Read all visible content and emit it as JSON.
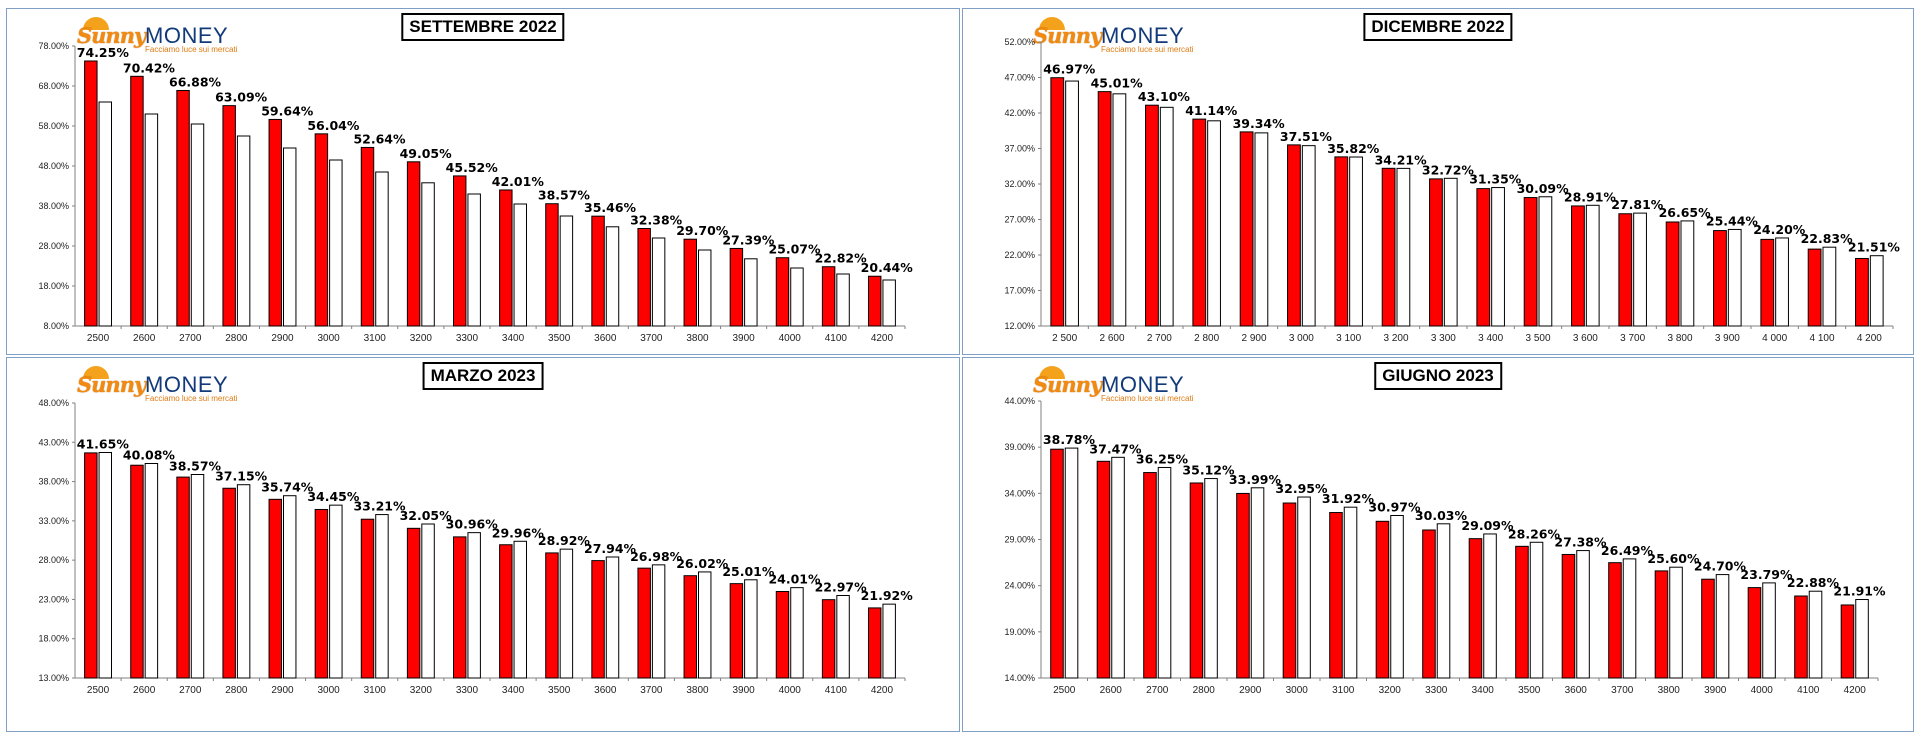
{
  "logo": {
    "brand_left": "Sunny",
    "brand_right": "MONEY",
    "tagline": "Facciamo luce sui mercati"
  },
  "colors": {
    "red_bar": "#ff0000",
    "white_bar": "#ffffff",
    "bar_stroke": "#000000",
    "panel_border": "#7f9fc4"
  },
  "chart_data": [
    {
      "type": "bar",
      "title": "SETTEMBRE 2022",
      "categories": [
        "2500",
        "2600",
        "2700",
        "2800",
        "2900",
        "3000",
        "3100",
        "3200",
        "3300",
        "3400",
        "3500",
        "3600",
        "3700",
        "3800",
        "3900",
        "4000",
        "4100",
        "4200"
      ],
      "series": [
        {
          "color": "#ff0000",
          "values": [
            74.25,
            70.42,
            66.88,
            63.09,
            59.64,
            56.04,
            52.64,
            49.05,
            45.52,
            42.01,
            38.57,
            35.46,
            32.38,
            29.7,
            27.39,
            25.07,
            22.82,
            20.44
          ]
        },
        {
          "color": "#ffffff",
          "values": [
            64.0,
            61.0,
            58.5,
            55.5,
            52.5,
            49.5,
            46.5,
            43.8,
            41.0,
            38.5,
            35.5,
            32.8,
            30.0,
            27.0,
            24.8,
            22.5,
            21.0,
            19.5
          ]
        }
      ],
      "data_labels": [
        "74.25%",
        "70.42%",
        "66.88%",
        "63.09%",
        "59.64%",
        "56.04%",
        "52.64%",
        "49.05%",
        "45.52%",
        "42.01%",
        "38.57%",
        "35.46%",
        "32.38%",
        "29.70%",
        "27.39%",
        "25.07%",
        "22.82%",
        "20.44%"
      ],
      "y_ticks": [
        "78.00%",
        "68.00%",
        "58.00%",
        "48.00%",
        "38.00%",
        "28.00%",
        "18.00%",
        "8.00%"
      ],
      "ylim": [
        8,
        78
      ],
      "grid": false
    },
    {
      "type": "bar",
      "title": "DICEMBRE 2022",
      "categories": [
        "2 500",
        "2 600",
        "2 700",
        "2 800",
        "2 900",
        "3 000",
        "3 100",
        "3 200",
        "3 300",
        "3 400",
        "3 500",
        "3 600",
        "3 700",
        "3 800",
        "3 900",
        "4 000",
        "4 100",
        "4 200"
      ],
      "series": [
        {
          "color": "#ff0000",
          "values": [
            46.97,
            45.01,
            43.1,
            41.14,
            39.34,
            37.51,
            35.82,
            34.21,
            32.72,
            31.35,
            30.09,
            28.91,
            27.81,
            26.65,
            25.44,
            24.2,
            22.83,
            21.51
          ]
        },
        {
          "color": "#ffffff",
          "values": [
            46.5,
            44.7,
            42.8,
            40.9,
            39.2,
            37.4,
            35.8,
            34.2,
            32.8,
            31.5,
            30.2,
            29.0,
            27.9,
            26.8,
            25.6,
            24.4,
            23.1,
            21.9
          ]
        }
      ],
      "data_labels": [
        "46.97%",
        "45.01%",
        "43.10%",
        "41.14%",
        "39.34%",
        "37.51%",
        "35.82%",
        "34.21%",
        "32.72%",
        "31.35%",
        "30.09%",
        "28.91%",
        "27.81%",
        "26.65%",
        "25.44%",
        "24.20%",
        "22.83%",
        "21.51%"
      ],
      "y_ticks": [
        "52.00%",
        "47.00%",
        "42.00%",
        "37.00%",
        "32.00%",
        "27.00%",
        "22.00%",
        "17.00%",
        "12.00%"
      ],
      "ylim": [
        12,
        52
      ],
      "grid": false
    },
    {
      "type": "bar",
      "title": "MARZO 2023",
      "categories": [
        "2500",
        "2600",
        "2700",
        "2800",
        "2900",
        "3000",
        "3100",
        "3200",
        "3300",
        "3400",
        "3500",
        "3600",
        "3700",
        "3800",
        "3900",
        "4000",
        "4100",
        "4200"
      ],
      "series": [
        {
          "color": "#ff0000",
          "values": [
            41.65,
            40.08,
            38.57,
            37.15,
            35.74,
            34.45,
            33.21,
            32.05,
            30.96,
            29.96,
            28.92,
            27.94,
            26.98,
            26.02,
            25.01,
            24.01,
            22.97,
            21.92
          ]
        },
        {
          "color": "#ffffff",
          "values": [
            41.7,
            40.3,
            38.9,
            37.6,
            36.2,
            35.0,
            33.8,
            32.6,
            31.5,
            30.4,
            29.4,
            28.4,
            27.4,
            26.5,
            25.5,
            24.5,
            23.5,
            22.4
          ]
        }
      ],
      "data_labels": [
        "41.65%",
        "40.08%",
        "38.57%",
        "37.15%",
        "35.74%",
        "34.45%",
        "33.21%",
        "32.05%",
        "30.96%",
        "29.96%",
        "28.92%",
        "27.94%",
        "26.98%",
        "26.02%",
        "25.01%",
        "24.01%",
        "22.97%",
        "21.92%"
      ],
      "y_ticks": [
        "48.00%",
        "43.00%",
        "38.00%",
        "33.00%",
        "28.00%",
        "23.00%",
        "18.00%",
        "13.00%"
      ],
      "ylim": [
        13,
        48
      ],
      "grid": false
    },
    {
      "type": "bar",
      "title": "GIUGNO 2023",
      "categories": [
        "2500",
        "2600",
        "2700",
        "2800",
        "2900",
        "3000",
        "3100",
        "3200",
        "3300",
        "3400",
        "3500",
        "3600",
        "3700",
        "3800",
        "3900",
        "4000",
        "4100",
        "4200"
      ],
      "series": [
        {
          "color": "#ff0000",
          "values": [
            38.78,
            37.47,
            36.25,
            35.12,
            33.99,
            32.95,
            31.92,
            30.97,
            30.03,
            29.09,
            28.26,
            27.38,
            26.49,
            25.6,
            24.7,
            23.79,
            22.88,
            21.91
          ]
        },
        {
          "color": "#ffffff",
          "values": [
            38.9,
            37.9,
            36.8,
            35.6,
            34.6,
            33.6,
            32.5,
            31.6,
            30.7,
            29.6,
            28.7,
            27.8,
            26.9,
            26.0,
            25.2,
            24.3,
            23.4,
            22.5
          ]
        }
      ],
      "data_labels": [
        "38.78%",
        "37.47%",
        "36.25%",
        "35.12%",
        "33.99%",
        "32.95%",
        "31.92%",
        "30.97%",
        "30.03%",
        "29.09%",
        "28.26%",
        "27.38%",
        "26.49%",
        "25.60%",
        "24.70%",
        "23.79%",
        "22.88%",
        "21.91%"
      ],
      "y_ticks": [
        "44.00%",
        "39.00%",
        "34.00%",
        "29.00%",
        "24.00%",
        "19.00%",
        "14.00%"
      ],
      "ylim": [
        14,
        44
      ],
      "grid": false
    }
  ]
}
